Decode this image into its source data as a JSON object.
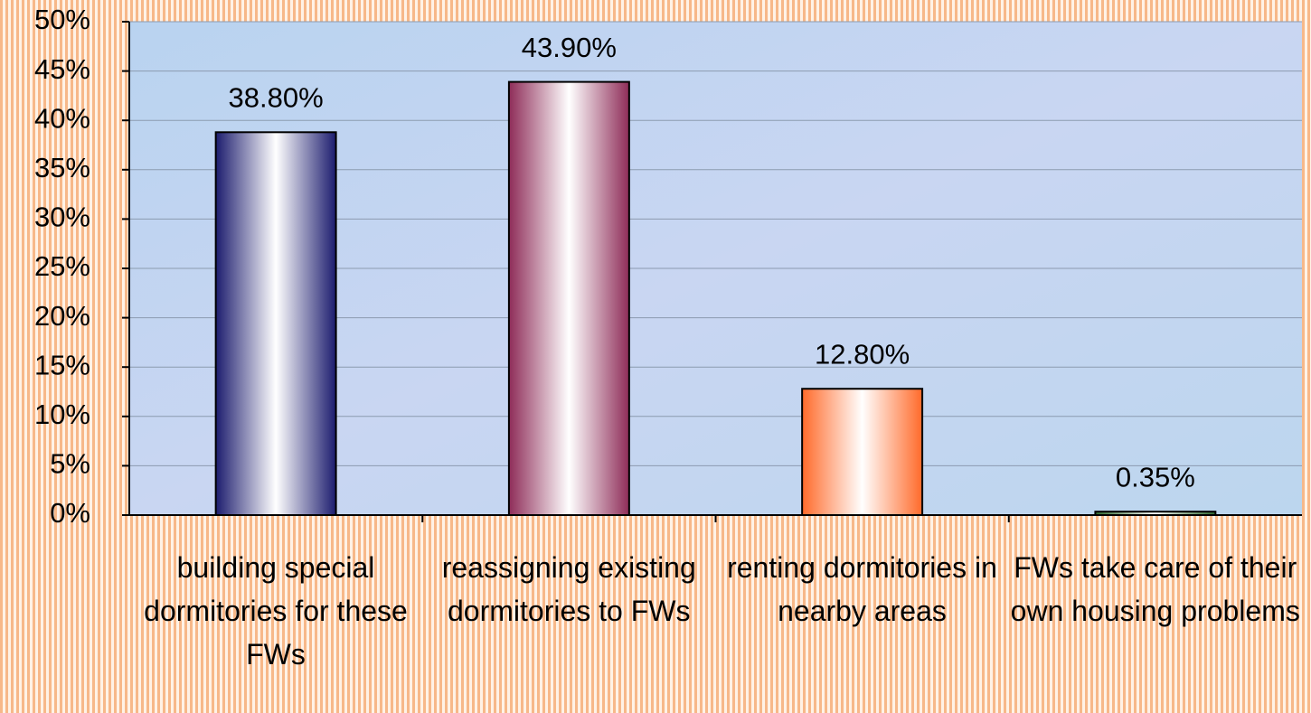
{
  "chart_data": {
    "type": "bar",
    "categories": [
      "building special dormitories for these FWs",
      "reassigning existing dormitories to FWs",
      "renting dormitories in nearby areas",
      "FWs take care of their own housing problems"
    ],
    "values": [
      38.8,
      43.9,
      12.8,
      0.35
    ],
    "value_labels": [
      "38.80%",
      "43.90%",
      "12.80%",
      "0.35%"
    ],
    "colors": [
      "#1c1c6e",
      "#8e2c58",
      "#ff6a2a",
      "#2e6a2e"
    ],
    "ylim": [
      0,
      50
    ],
    "yticks": [
      {
        "value": 0,
        "label": "0%"
      },
      {
        "value": 5,
        "label": "5%"
      },
      {
        "value": 10,
        "label": "10%"
      },
      {
        "value": 15,
        "label": "15%"
      },
      {
        "value": 20,
        "label": "20%"
      },
      {
        "value": 25,
        "label": "25%"
      },
      {
        "value": 30,
        "label": "30%"
      },
      {
        "value": 35,
        "label": "35%"
      },
      {
        "value": 40,
        "label": "40%"
      },
      {
        "value": 45,
        "label": "45%"
      },
      {
        "value": 50,
        "label": "50%"
      }
    ],
    "grid": true
  }
}
